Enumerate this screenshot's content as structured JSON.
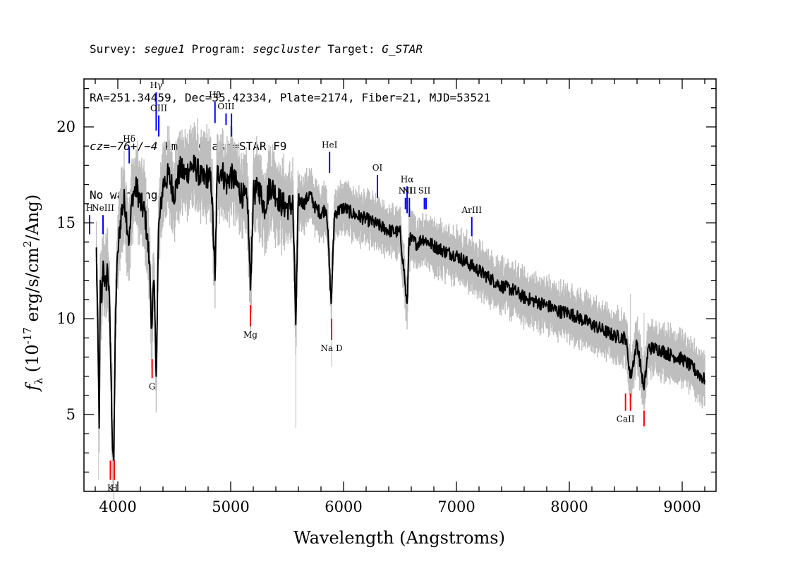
{
  "header": {
    "survey_label": "Survey:",
    "survey": "segue1",
    "program_label": "Program:",
    "program": "segcluster",
    "target_label": "Target:",
    "target": "G_STAR",
    "line2": "RA=251.34459, Dec=35.42334, Plate=2174, Fiber=21, MJD=53521",
    "cz_label": "cz=",
    "cz_value": "−76+/−4",
    "cz_rest": " km/s Class=STAR F9",
    "line4": "No warnings."
  },
  "chart_data": {
    "type": "line",
    "title": "",
    "xlabel": "Wavelength (Angstroms)",
    "ylabel": "f_λ (10^-17 erg/s/cm^2/Ang)",
    "xlim": [
      3700,
      9300
    ],
    "ylim": [
      1,
      22.5
    ],
    "x_ticks": [
      4000,
      5000,
      6000,
      7000,
      8000,
      9000
    ],
    "y_ticks": [
      5,
      10,
      15,
      20
    ],
    "grid": false,
    "colors": {
      "flux": "#000000",
      "envelope": "#bebebe",
      "emission": "#0000ff",
      "absorption": "#ff0000"
    },
    "series": [
      {
        "name": "",
        "x": [
          3810,
          3825,
          3835,
          3845,
          3855,
          3870,
          3890,
          3910,
          3930,
          3950,
          3965,
          3980,
          4000,
          4030,
          4060,
          4101,
          4130,
          4170,
          4200,
          4240,
          4280,
          4300,
          4320,
          4340,
          4360,
          4400,
          4450,
          4500,
          4550,
          4600,
          4650,
          4700,
          4750,
          4800,
          4830,
          4861,
          4880,
          4920,
          4960,
          5000,
          5050,
          5100,
          5150,
          5175,
          5200,
          5250,
          5300,
          5350,
          5400,
          5450,
          5500,
          5550,
          5577,
          5600,
          5650,
          5700,
          5750,
          5800,
          5850,
          5890,
          5920,
          6000,
          6100,
          6200,
          6300,
          6400,
          6500,
          6540,
          6563,
          6580,
          6650,
          6700,
          6800,
          6900,
          7000,
          7100,
          7200,
          7300,
          7400,
          7500,
          7600,
          7700,
          7800,
          7900,
          8000,
          8100,
          8200,
          8300,
          8400,
          8500,
          8542,
          8600,
          8662,
          8700,
          8800,
          8900,
          9000,
          9100,
          9150,
          9200
        ],
        "y": [
          13.5,
          8.5,
          4.3,
          12.0,
          10.5,
          13.0,
          11.5,
          12.8,
          10.0,
          4.0,
          2.6,
          10.5,
          13.5,
          15.5,
          16.2,
          14.0,
          16.5,
          16.8,
          16.0,
          15.5,
          13.0,
          9.5,
          12.0,
          7.0,
          14.5,
          17.0,
          17.5,
          16.5,
          17.8,
          17.5,
          18.0,
          17.8,
          17.2,
          17.5,
          17.0,
          12.0,
          17.5,
          17.8,
          17.0,
          17.5,
          17.0,
          16.5,
          16.0,
          11.5,
          16.5,
          16.8,
          15.8,
          17.0,
          16.5,
          16.0,
          15.8,
          16.0,
          9.7,
          16.2,
          16.0,
          16.5,
          15.8,
          15.5,
          15.8,
          10.8,
          15.5,
          15.8,
          15.4,
          15.2,
          14.9,
          14.6,
          14.5,
          12.2,
          10.5,
          14.2,
          13.9,
          14.2,
          13.8,
          13.5,
          13.3,
          12.9,
          12.5,
          12.1,
          11.7,
          11.5,
          11.1,
          10.9,
          10.7,
          10.4,
          10.3,
          10.0,
          9.7,
          9.4,
          9.1,
          9.0,
          6.9,
          8.8,
          6.3,
          8.5,
          8.4,
          8.1,
          7.9,
          7.4,
          7.1,
          6.8
        ]
      }
    ],
    "lines": [
      {
        "label": "H",
        "x": 3750,
        "y_top": 15.4,
        "y_bot": 14.4,
        "kind": "emission"
      },
      {
        "label": "NeIII",
        "x": 3869,
        "y_top": 15.4,
        "y_bot": 14.4,
        "kind": "emission"
      },
      {
        "label": "Hδ",
        "x": 4101,
        "y_top": 19.0,
        "y_bot": 18.1,
        "kind": "emission"
      },
      {
        "label": "Hγ",
        "x": 4340,
        "y_top": 21.8,
        "y_bot": 19.8,
        "kind": "emission"
      },
      {
        "label": "OIII",
        "x": 4363,
        "y_top": 20.6,
        "y_bot": 19.5,
        "kind": "emission"
      },
      {
        "label": "Hβ",
        "x": 4861,
        "y_top": 21.3,
        "y_bot": 20.2,
        "kind": "emission"
      },
      {
        "label": "OIII",
        "x": 4959,
        "y_top": 20.7,
        "y_bot": 20.1,
        "kind": "emission"
      },
      {
        "label": "",
        "x": 5007,
        "y_top": 20.7,
        "y_bot": 19.5,
        "kind": "emission"
      },
      {
        "label": "HeI",
        "x": 5876,
        "y_top": 18.7,
        "y_bot": 17.6,
        "kind": "emission"
      },
      {
        "label": "OI",
        "x": 6300,
        "y_top": 17.5,
        "y_bot": 16.3,
        "kind": "emission"
      },
      {
        "label": "NII",
        "x": 6548,
        "y_top": 16.3,
        "y_bot": 15.7,
        "kind": "emission"
      },
      {
        "label": "Hα",
        "x": 6563,
        "y_top": 16.9,
        "y_bot": 15.5,
        "kind": "emission"
      },
      {
        "label": "NII",
        "x": 6583,
        "y_top": 16.3,
        "y_bot": 15.3,
        "kind": "emission"
      },
      {
        "label": "SII",
        "x": 6716,
        "y_top": 16.3,
        "y_bot": 15.7,
        "kind": "emission"
      },
      {
        "label": "",
        "x": 6731,
        "y_top": 16.3,
        "y_bot": 15.7,
        "kind": "emission"
      },
      {
        "label": "ArIII",
        "x": 7136,
        "y_top": 15.3,
        "y_bot": 14.3,
        "kind": "emission"
      },
      {
        "label": "K",
        "x": 3934,
        "y_top": 2.6,
        "y_bot": 1.6,
        "kind": "absorption"
      },
      {
        "label": "H",
        "x": 3969,
        "y_top": 2.6,
        "y_bot": 1.6,
        "kind": "absorption"
      },
      {
        "label": "G",
        "x": 4304,
        "y_top": 7.9,
        "y_bot": 6.9,
        "kind": "absorption"
      },
      {
        "label": "Mg",
        "x": 5175,
        "y_top": 10.7,
        "y_bot": 9.6,
        "kind": "absorption"
      },
      {
        "label": "Na D",
        "x": 5894,
        "y_top": 10.0,
        "y_bot": 8.9,
        "kind": "absorption"
      },
      {
        "label": "CaII",
        "x": 8498,
        "y_top": 6.1,
        "y_bot": 5.2,
        "kind": "absorption"
      },
      {
        "label": "",
        "x": 8542,
        "y_top": 6.1,
        "y_bot": 5.2,
        "kind": "absorption"
      },
      {
        "label": "",
        "x": 8662,
        "y_top": 5.2,
        "y_bot": 4.4,
        "kind": "absorption"
      }
    ]
  }
}
